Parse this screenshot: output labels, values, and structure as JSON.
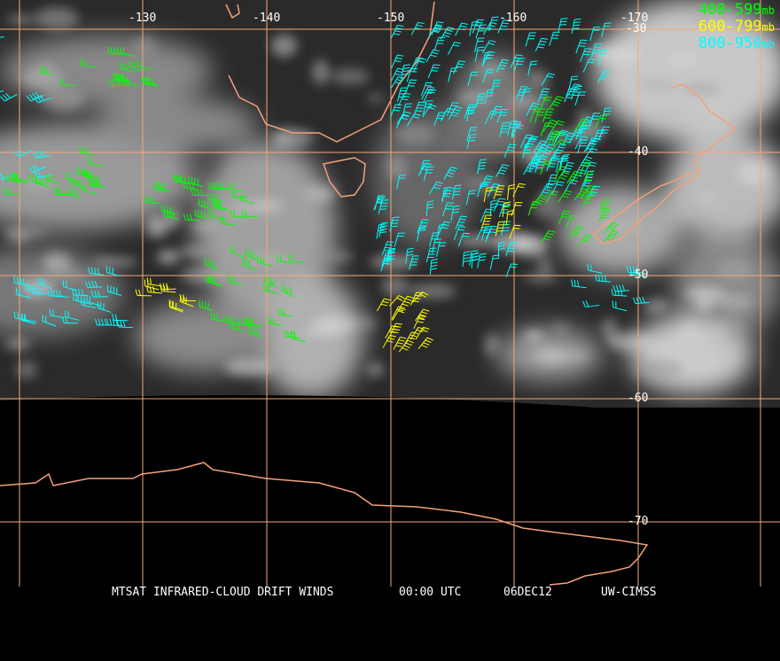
{
  "map": {
    "longitude_labels": [
      "-130",
      "-140",
      "-150",
      "-160",
      "-170"
    ],
    "latitude_labels": [
      "-30",
      "-40",
      "-50",
      "-60",
      "-70"
    ],
    "colors": {
      "grid": "#f4a878",
      "coast": "#f4a07a",
      "green": "#00ff00",
      "yellow": "#ffff00",
      "cyan": "#00ffff"
    }
  },
  "legend": [
    {
      "range": "400-599",
      "unit": "mb",
      "color": "#00ff00"
    },
    {
      "range": "600-799",
      "unit": "mb",
      "color": "#ffff00"
    },
    {
      "range": "800-950",
      "unit": "mb",
      "color": "#00ffff"
    }
  ],
  "caption": {
    "product": "MTSAT INFRARED-CLOUD DRIFT WINDS",
    "time": "00:00 UTC",
    "date": "06DEC12",
    "source": "UW-CIMSS"
  }
}
